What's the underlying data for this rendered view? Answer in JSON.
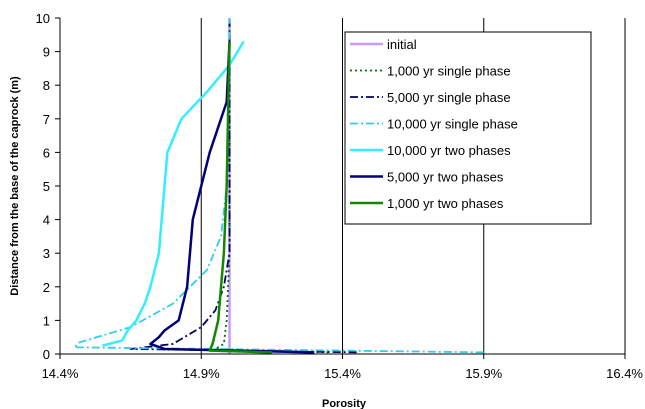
{
  "chart_data": {
    "type": "line",
    "title": "",
    "xlabel": "Porosity",
    "ylabel": "Distance from the base of the caprock (m)",
    "xlim": [
      0.144,
      0.164
    ],
    "ylim": [
      0,
      10
    ],
    "x_ticks": [
      0.144,
      0.149,
      0.154,
      0.159,
      0.164
    ],
    "x_tick_labels": [
      "14.4%",
      "14.9%",
      "15.4%",
      "15.9%",
      "16.4%"
    ],
    "y_ticks": [
      0,
      1,
      2,
      3,
      4,
      5,
      6,
      7,
      8,
      9,
      10
    ],
    "y_tick_labels": [
      "0",
      "1",
      "2",
      "3",
      "4",
      "5",
      "6",
      "7",
      "8",
      "9",
      "10"
    ],
    "grid": "vertical",
    "legend_position": "top-right",
    "series": [
      {
        "name": "initial",
        "color": "#cc99ff",
        "dash": "solid",
        "points": [
          [
            0.15,
            0
          ],
          [
            0.15,
            10
          ]
        ]
      },
      {
        "name": "1,000 yr single phase",
        "color": "#007700",
        "dash": "dot",
        "points": [
          [
            0.1535,
            0.05
          ],
          [
            0.1495,
            0.15
          ],
          [
            0.1498,
            0.3
          ],
          [
            0.1499,
            1.0
          ],
          [
            0.15,
            3.0
          ],
          [
            0.15,
            5.5
          ],
          [
            0.15,
            10
          ]
        ]
      },
      {
        "name": "5,000 yr single phase",
        "color": "#000066",
        "dash": "dashdot",
        "points": [
          [
            0.1545,
            0.05
          ],
          [
            0.1465,
            0.15
          ],
          [
            0.148,
            0.3
          ],
          [
            0.149,
            0.8
          ],
          [
            0.1495,
            1.3
          ],
          [
            0.1498,
            2.0
          ],
          [
            0.15,
            3.0
          ],
          [
            0.15,
            10
          ]
        ]
      },
      {
        "name": "10,000 yr single phase",
        "color": "#33ccee",
        "dash": "dashdot",
        "points": [
          [
            0.159,
            0.05
          ],
          [
            0.1445,
            0.2
          ],
          [
            0.1447,
            0.35
          ],
          [
            0.1465,
            0.8
          ],
          [
            0.148,
            1.5
          ],
          [
            0.1492,
            2.5
          ],
          [
            0.1497,
            3.5
          ],
          [
            0.1499,
            5.0
          ],
          [
            0.15,
            10
          ]
        ]
      },
      {
        "name": "10,000 yr two phases",
        "color": "#33eeff",
        "dash": "solid",
        "points": [
          [
            0.1455,
            0.25
          ],
          [
            0.1462,
            0.4
          ],
          [
            0.1464,
            0.7
          ],
          [
            0.1467,
            1.0
          ],
          [
            0.147,
            1.5
          ],
          [
            0.1472,
            2.0
          ],
          [
            0.1475,
            3.0
          ],
          [
            0.1477,
            5.0
          ],
          [
            0.1478,
            6.0
          ],
          [
            0.1483,
            7.0
          ],
          [
            0.1492,
            7.8
          ],
          [
            0.15,
            8.6
          ],
          [
            0.1505,
            9.3
          ]
        ]
      },
      {
        "name": "5,000 yr two phases",
        "color": "#000077",
        "dash": "solid",
        "points": [
          [
            0.153,
            0.05
          ],
          [
            0.1477,
            0.15
          ],
          [
            0.1472,
            0.3
          ],
          [
            0.1475,
            0.5
          ],
          [
            0.1477,
            0.7
          ],
          [
            0.1482,
            1.0
          ],
          [
            0.1485,
            2.0
          ],
          [
            0.1486,
            3.0
          ],
          [
            0.1487,
            4.0
          ],
          [
            0.1493,
            6.0
          ],
          [
            0.1499,
            7.5
          ],
          [
            0.15,
            9.3
          ]
        ]
      },
      {
        "name": "1,000 yr two phases",
        "color": "#118800",
        "dash": "solid",
        "points": [
          [
            0.1515,
            0.05
          ],
          [
            0.1493,
            0.1
          ],
          [
            0.1494,
            0.3
          ],
          [
            0.1496,
            1.0
          ],
          [
            0.1498,
            3.0
          ],
          [
            0.1499,
            5.0
          ],
          [
            0.15,
            9.3
          ]
        ]
      }
    ]
  }
}
